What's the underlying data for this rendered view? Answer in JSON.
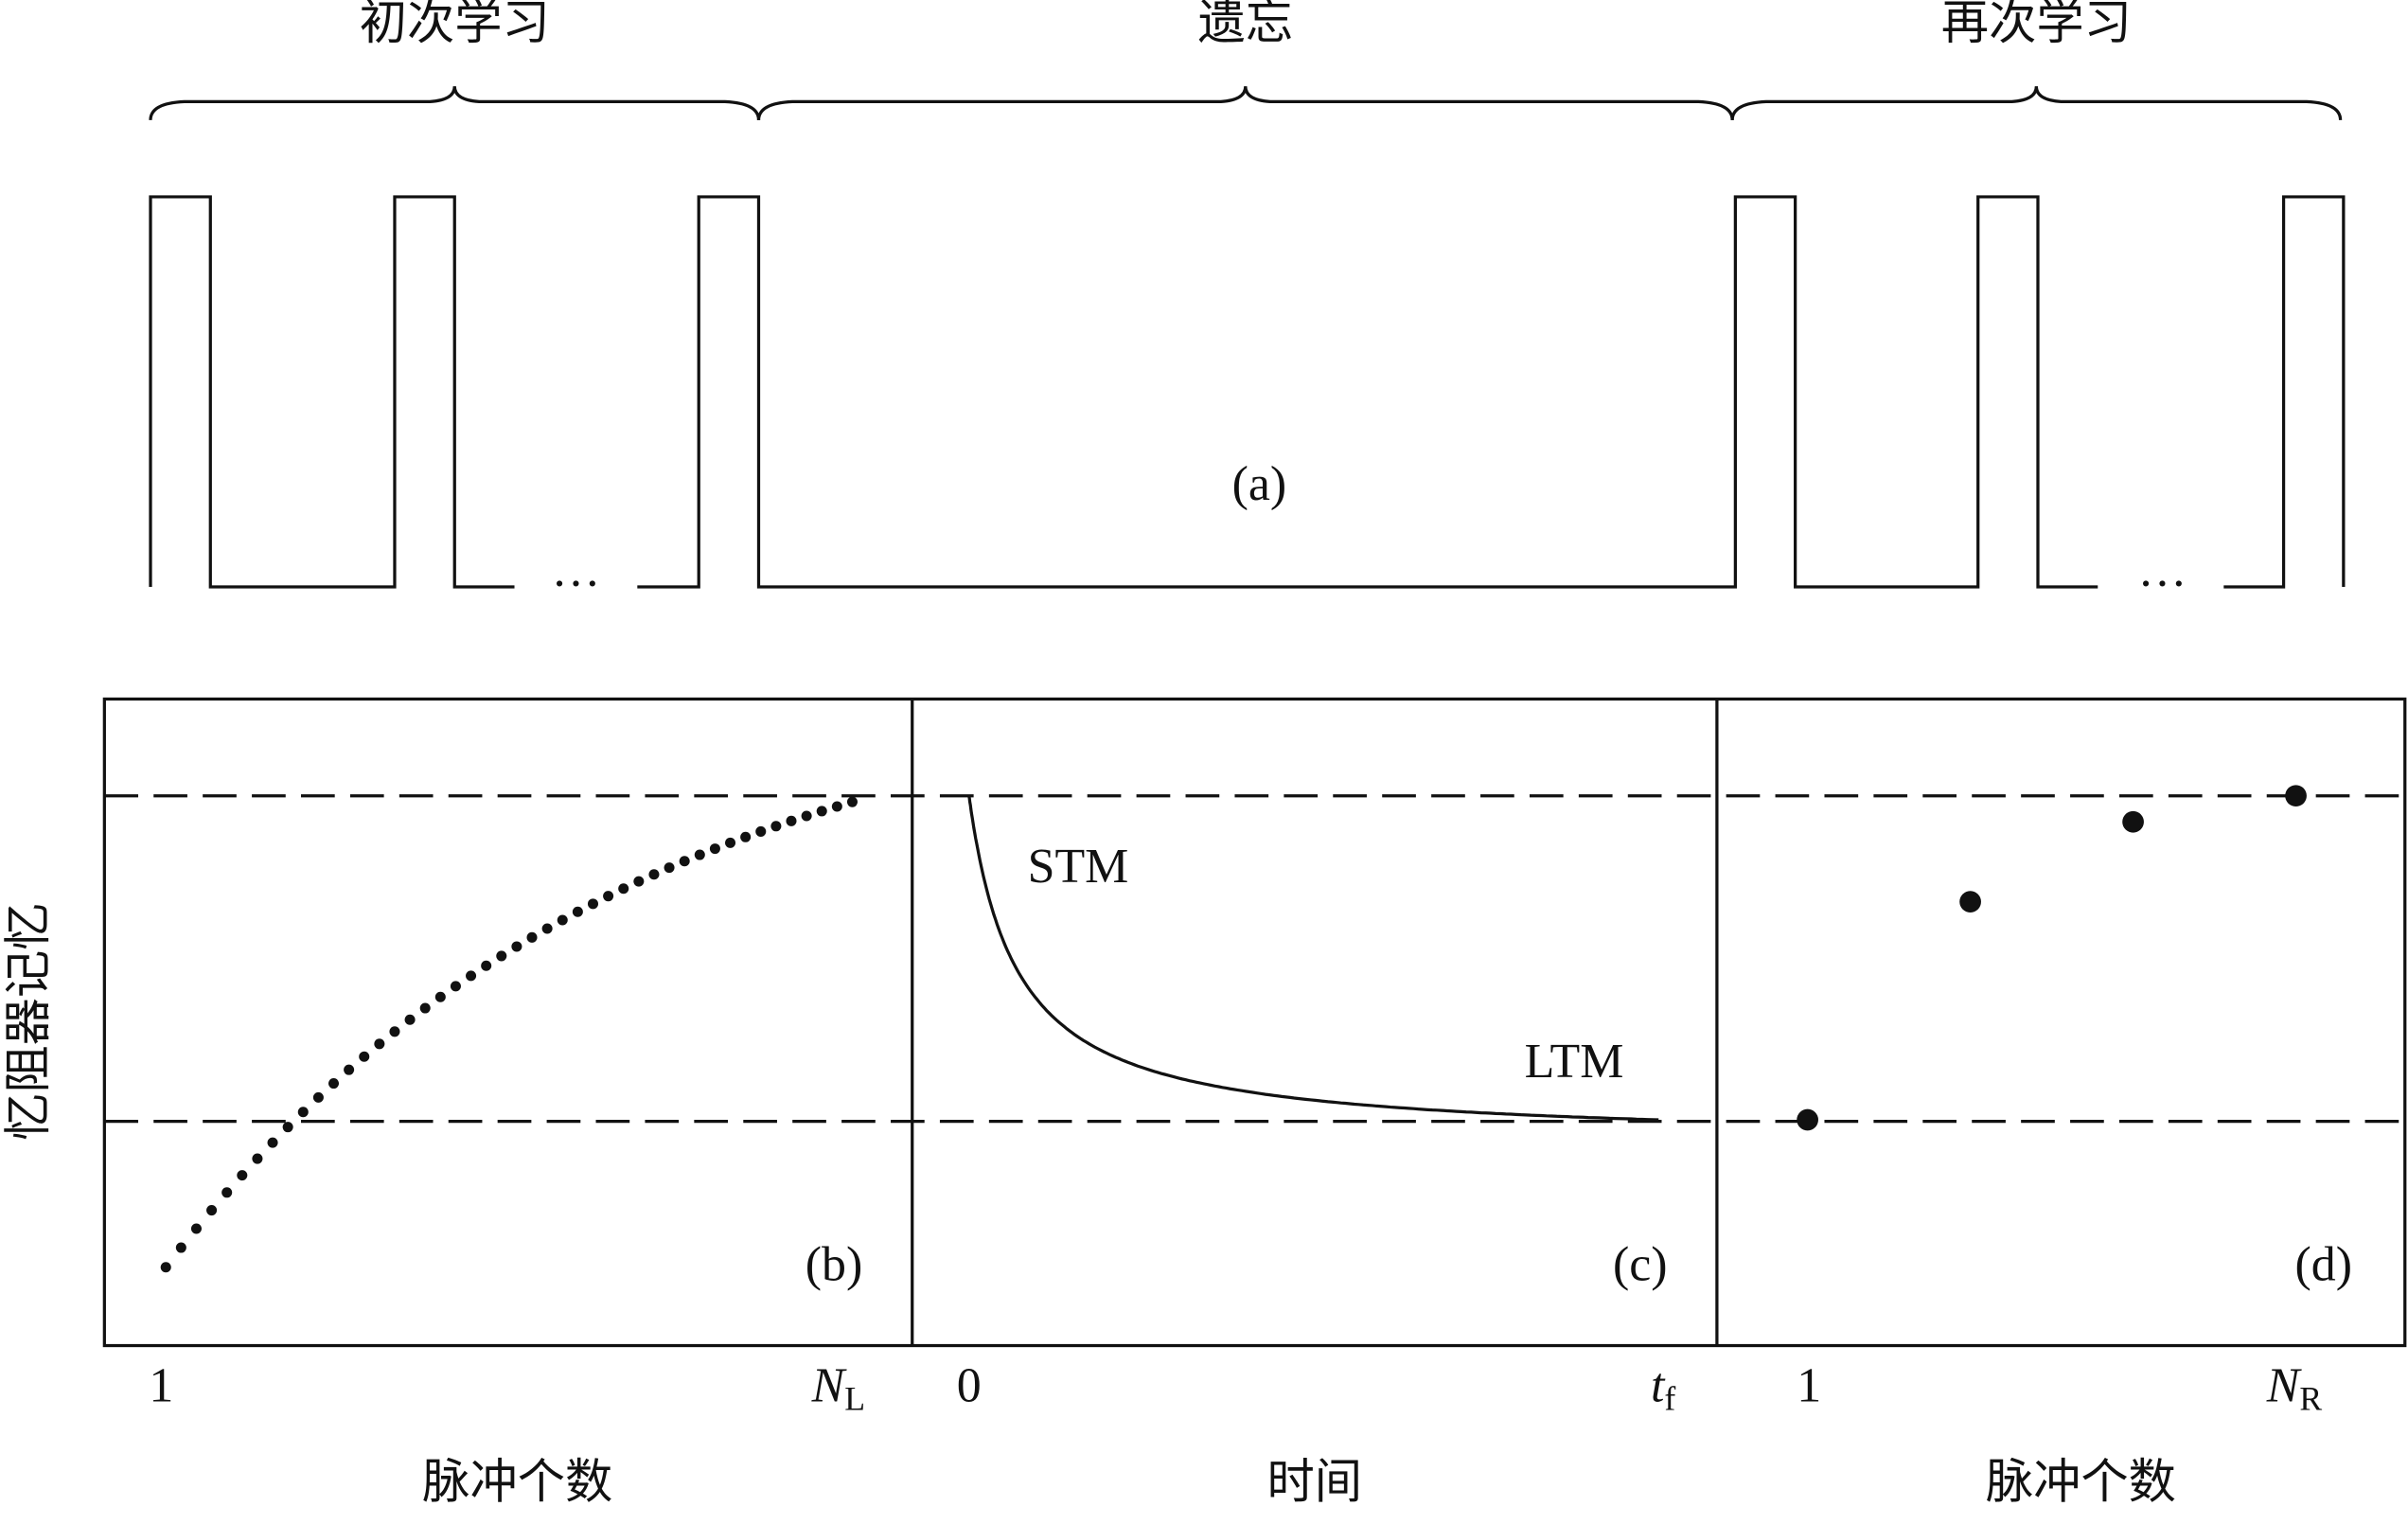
{
  "phases": {
    "learning": "初次学习",
    "forgetting": "遗忘",
    "relearning": "再次学习"
  },
  "pulse_ellipsis": [
    "…",
    "…"
  ],
  "panels": {
    "a": "(a)",
    "b": "(b)",
    "c": "(c)",
    "d": "(d)"
  },
  "y_axis_label": "忆阻器记忆",
  "x_axis_labels": [
    "脉冲个数",
    "时间",
    "脉冲个数"
  ],
  "ticks": {
    "b_start": "1",
    "b_end": {
      "main": "N",
      "sub": "L"
    },
    "c_start": "0",
    "c_end": {
      "main": "t",
      "sub": "f"
    },
    "d_start": "1",
    "d_end": {
      "main": "N",
      "sub": "R"
    }
  },
  "curve_labels": {
    "stm": "STM",
    "ltm": "LTM"
  }
}
